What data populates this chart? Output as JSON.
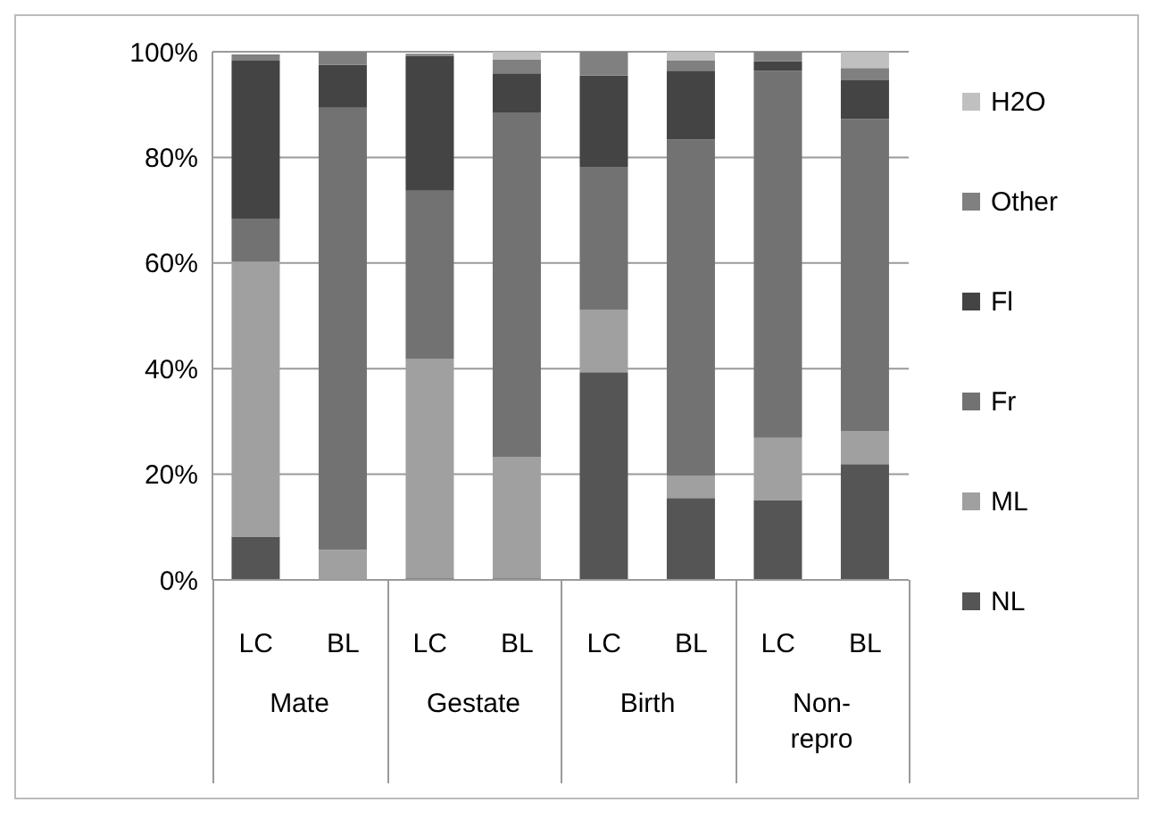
{
  "chart_data": {
    "type": "bar",
    "stacked": true,
    "categories": [
      "LC",
      "BL",
      "LC",
      "BL",
      "LC",
      "BL",
      "LC",
      "BL"
    ],
    "annotations": [
      "Mate",
      "Gestate",
      "Birth",
      "Non-repro"
    ],
    "series": [
      {
        "name": "NL",
        "color": "#555555",
        "values": [
          8.2,
          0,
          0.3,
          0.3,
          39.3,
          15.5,
          15.1,
          21.9
        ]
      },
      {
        "name": "ML",
        "color": "#a0a0a0",
        "values": [
          52,
          5.7,
          41.5,
          23,
          11.8,
          4.2,
          11.8,
          6.3
        ]
      },
      {
        "name": "Fr",
        "color": "#727272",
        "values": [
          8.2,
          83.7,
          31.9,
          65.2,
          27.1,
          63.7,
          69.5,
          59.1
        ]
      },
      {
        "name": "Fl",
        "color": "#444444",
        "values": [
          29.9,
          8.1,
          25.5,
          7.4,
          17.3,
          13,
          1.8,
          7.3
        ]
      },
      {
        "name": "Other",
        "color": "#808080",
        "values": [
          1.2,
          2.5,
          0.4,
          2.6,
          4.5,
          2,
          1.8,
          2.3
        ]
      },
      {
        "name": "H2O",
        "color": "#c0c0c0",
        "values": [
          null,
          0,
          null,
          1.5,
          0,
          1.6,
          0,
          3.1
        ]
      }
    ],
    "ylim": [
      0,
      100
    ],
    "yticks": [
      {
        "value": 0,
        "label": "0%"
      },
      {
        "value": 20,
        "label": "20%"
      },
      {
        "value": 40,
        "label": "40%"
      },
      {
        "value": 60,
        "label": "60%"
      },
      {
        "value": 80,
        "label": "80%"
      },
      {
        "value": 100,
        "label": "100%"
      }
    ],
    "grid": "y",
    "legend": "right"
  }
}
